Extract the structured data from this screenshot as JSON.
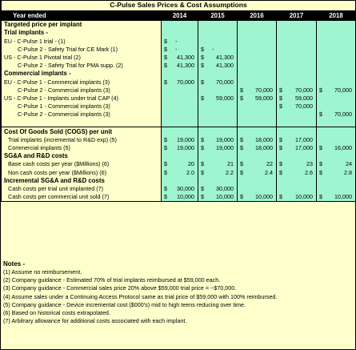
{
  "title": "C-Pulse Sales Prices & Cost Assumptions",
  "header": {
    "label": "Year ended",
    "years": [
      "2014",
      "2015",
      "2016",
      "2017",
      "2018"
    ]
  },
  "rows": [
    {
      "label": "Targeted price per implant",
      "type": "sec",
      "cells": [
        "",
        "",
        "",
        "",
        ""
      ]
    },
    {
      "label": "Trial implants -",
      "type": "sec",
      "cells": [
        "",
        "",
        "",
        "",
        ""
      ]
    },
    {
      "label": "EU - C-Pulse 1 trial - (1)",
      "type": "i1",
      "cells": [
        "$|-",
        "",
        "",
        "",
        ""
      ]
    },
    {
      "label": "C-Pulse 2 - Safety Trial for CE Mark (1)",
      "type": "i2",
      "cells": [
        "$|-",
        "$|-",
        "",
        "",
        ""
      ]
    },
    {
      "label": "US - C-Pulse 1 Pivotal trial (2)",
      "type": "i1",
      "cells": [
        "$|41,300",
        "$|41,300",
        "",
        "",
        ""
      ]
    },
    {
      "label": "C-Pulse 2 - Safety Trial for PMA supp. (2)",
      "type": "i2",
      "cells": [
        "$|41,300",
        "$|41,300",
        "",
        "",
        ""
      ]
    },
    {
      "label": "Commercial implants -",
      "type": "sec",
      "cells": [
        "",
        "",
        "",
        "",
        ""
      ]
    },
    {
      "label": "EU - C-Pulse 1 - Commercial implants (3)",
      "type": "i1",
      "cells": [
        "$|70,000",
        "$|70,000",
        "",
        "",
        ""
      ]
    },
    {
      "label": "C-Pulse 2 - Commercial implants (3)",
      "type": "i2",
      "cells": [
        "",
        "",
        "$|70,000",
        "$|70,000",
        "$|70,000"
      ]
    },
    {
      "label": "US - C-Pulse 1 - Implants under trial CAP (4)",
      "type": "i1",
      "cells": [
        "",
        "$|59,000",
        "$|59,000",
        "$|59,000",
        ""
      ]
    },
    {
      "label": "C-Pulse 1 - Commercial implants (3)",
      "type": "i2",
      "cells": [
        "",
        "",
        "",
        "$|70,000",
        ""
      ]
    },
    {
      "label": "C-Pulse 2 - Commercial implants (3)",
      "type": "i2",
      "cells": [
        "",
        "",
        "",
        "",
        "$|70,000"
      ]
    },
    {
      "label": "",
      "type": "blank",
      "cells": [
        "",
        "",
        "",
        "",
        ""
      ]
    },
    {
      "label": "Cost Of Goods Sold (COGS) per unit",
      "type": "sec",
      "top": true,
      "cells": [
        "",
        "",
        "",
        "",
        ""
      ]
    },
    {
      "label": "Trial implants (incremental to R&D exp) (5)",
      "type": "i3",
      "cells": [
        "$|19,000",
        "$|19,000",
        "$|18,000",
        "$|17,000",
        ""
      ]
    },
    {
      "label": "Commercial implants (5)",
      "type": "i3",
      "cells": [
        "$|19,000",
        "$|19,000",
        "$|18,000",
        "$|17,000",
        "$|16,000"
      ]
    },
    {
      "label": "SG&A and R&D costs",
      "type": "sec",
      "cells": [
        "",
        "",
        "",
        "",
        ""
      ]
    },
    {
      "label": "Base cash costs per year ($Millions) (6)",
      "type": "i3",
      "cells": [
        "$|20",
        "$|21",
        "$|22",
        "$|23",
        "$|24"
      ]
    },
    {
      "label": "Non cash costs per year ($Millions) (6)",
      "type": "i3",
      "cells": [
        "$|2.0",
        "$|2.2",
        "$|2.4",
        "$|2.6",
        "$|2.8"
      ]
    },
    {
      "label": "Incremental SG&A and R&D costs",
      "type": "sec",
      "cells": [
        "",
        "",
        "",
        "",
        ""
      ]
    },
    {
      "label": "Cash costs per trial unit implanted (7)",
      "type": "i3",
      "cells": [
        "$|30,000",
        "$|30,000",
        "",
        "",
        ""
      ]
    },
    {
      "label": "Cash costs per commercial unit sold (7)",
      "type": "i3",
      "cells": [
        "$|10,000",
        "$|10,000",
        "$|10,000",
        "$|10,000",
        "$|10,000"
      ]
    }
  ],
  "notes": {
    "title": "Notes -",
    "items": [
      "(1) Assume no reimbursement.",
      "(2) Company guidance - Estimated 70% of trial implants reimbursed at $59,000 each.",
      "(3) Company guidance - Commercial sales price 20% above $59,000 trial price = ~$70,000.",
      "(4) Assume sales under a Continuing Access Protocol same as trial price of $59,000 with 100% reimbursed.",
      "(5) Company guidance - Device incremental cost ($000's) mid to high teens reducing over time.",
      "(6) Based on historical costs extrapolated.",
      "(7) Arbitrary allowance  for additional costs associated with each implant."
    ]
  },
  "colors": {
    "background": "#ffffcc",
    "year_cells": "#9ff5d0",
    "header": "#000000"
  }
}
